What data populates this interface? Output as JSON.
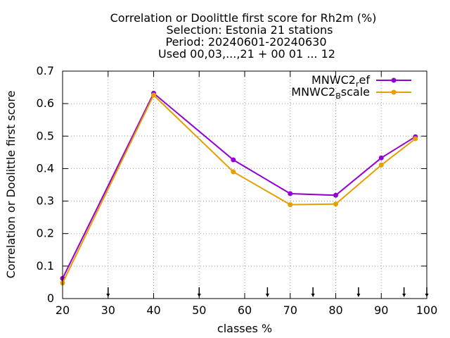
{
  "chart_data": {
    "type": "line",
    "title_lines": [
      "Correlation or Doolittle first score  for Rh2m (%)",
      "Selection: Estonia     21 stations",
      "Period: 20240601-20240630",
      "Used 00,03,...,21 + 00 01 ... 12"
    ],
    "xlabel": "classes %",
    "ylabel": "Correlation or Doolittle first score",
    "xlim": [
      20,
      100
    ],
    "ylim": [
      0,
      0.7
    ],
    "xticks": [
      20,
      30,
      40,
      50,
      60,
      70,
      80,
      90,
      100
    ],
    "yticks": [
      0,
      0.1,
      0.2,
      0.3,
      0.4,
      0.5,
      0.6,
      0.7
    ],
    "grid": true,
    "legend_position": "top-right",
    "series": [
      {
        "name_main": "MNWC2",
        "name_sub": "r",
        "name_tail": "ef",
        "color": "#9400d3",
        "x": [
          20,
          40,
          57.5,
          70,
          80,
          90,
          97.5
        ],
        "y": [
          0.062,
          0.632,
          0.427,
          0.323,
          0.318,
          0.433,
          0.498
        ]
      },
      {
        "name_main": "MNWC2",
        "name_sub": "B",
        "name_tail": "scale",
        "color": "#e69f00",
        "x": [
          20,
          40,
          57.5,
          70,
          80,
          90,
          97.5
        ],
        "y": [
          0.048,
          0.626,
          0.39,
          0.289,
          0.291,
          0.411,
          0.492
        ]
      }
    ],
    "arrow_markers_x": [
      30,
      50,
      65,
      75,
      85,
      95,
      100
    ]
  }
}
